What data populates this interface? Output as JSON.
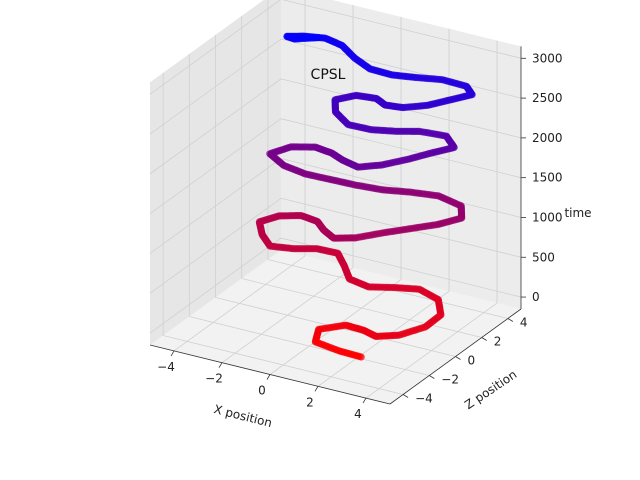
{
  "chart_data": {
    "type": "scatter",
    "projection": "3d",
    "title": "CPSL",
    "xlabel": "X position",
    "ylabel": "Z position",
    "zlabel": "time",
    "xlim": [
      -5,
      5
    ],
    "ylim": [
      -5,
      5
    ],
    "zlim": [
      -150,
      3150
    ],
    "xticks": [
      "−4",
      "−2",
      "0",
      "2",
      "4"
    ],
    "yticks": [
      "−4",
      "−2",
      "0",
      "2",
      "4"
    ],
    "zticks": [
      "0",
      "500",
      "1000",
      "1500",
      "2000",
      "2500",
      "3000"
    ],
    "grid": true,
    "pane_color": "#f2f2f2",
    "color_start": "#ff0000",
    "color_end": "#0000ff",
    "series": [
      {
        "points": [
          [
            2.6,
            -2.8,
            0
          ],
          [
            1.8,
            -3.0,
            40
          ],
          [
            0.8,
            -3.0,
            80
          ],
          [
            0.5,
            -2.2,
            120
          ],
          [
            1.3,
            -1.6,
            160
          ],
          [
            2.2,
            -1.9,
            200
          ],
          [
            3.0,
            -2.4,
            240
          ],
          [
            3.8,
            -2.1,
            280
          ],
          [
            4.4,
            -1.2,
            320
          ],
          [
            4.5,
            -0.2,
            360
          ],
          [
            3.9,
            0.7,
            400
          ],
          [
            3.0,
            0.9,
            440
          ],
          [
            2.3,
            0.3,
            480
          ],
          [
            1.6,
            -0.4,
            520
          ],
          [
            0.8,
            -0.4,
            560
          ],
          [
            0.2,
            0.3,
            600
          ],
          [
            -0.4,
            0.9,
            640
          ],
          [
            -1.1,
            0.6,
            680
          ],
          [
            -1.7,
            -0.1,
            720
          ],
          [
            -2.4,
            -0.6,
            760
          ],
          [
            -3.0,
            -0.1,
            800
          ],
          [
            -3.5,
            0.6,
            840
          ],
          [
            -3.0,
            1.2,
            880
          ],
          [
            -2.2,
            1.4,
            920
          ],
          [
            -1.3,
            1.0,
            960
          ],
          [
            -0.6,
            0.2,
            1000
          ],
          [
            0.2,
            -0.5,
            1040
          ],
          [
            1.0,
            -0.3,
            1080
          ],
          [
            1.8,
            0.4,
            1120
          ],
          [
            2.6,
            1.0,
            1160
          ],
          [
            3.4,
            1.6,
            1200
          ],
          [
            4.0,
            2.3,
            1240
          ],
          [
            3.6,
            3.0,
            1280
          ],
          [
            2.6,
            3.1,
            1320
          ],
          [
            1.7,
            2.6,
            1360
          ],
          [
            0.9,
            2.0,
            1400
          ],
          [
            0.0,
            1.6,
            1440
          ],
          [
            -0.9,
            1.3,
            1480
          ],
          [
            -1.8,
            1.0,
            1520
          ],
          [
            -2.7,
            1.0,
            1560
          ],
          [
            -3.5,
            1.4,
            1600
          ],
          [
            -3.0,
            2.1,
            1640
          ],
          [
            -2.1,
            2.3,
            1680
          ],
          [
            -1.2,
            1.9,
            1720
          ],
          [
            -0.4,
            1.3,
            1760
          ],
          [
            0.5,
            0.8,
            1800
          ],
          [
            1.3,
            1.2,
            1840
          ],
          [
            2.0,
            1.9,
            1880
          ],
          [
            2.6,
            2.6,
            1920
          ],
          [
            3.2,
            3.2,
            1960
          ],
          [
            2.6,
            3.7,
            2000
          ],
          [
            1.7,
            3.3,
            2040
          ],
          [
            1.1,
            2.6,
            2080
          ],
          [
            0.4,
            2.0,
            2120
          ],
          [
            -0.4,
            1.7,
            2160
          ],
          [
            -1.2,
            2.2,
            2200
          ],
          [
            -1.6,
            2.9,
            2240
          ],
          [
            -1.0,
            3.4,
            2280
          ],
          [
            -0.1,
            3.3,
            2320
          ],
          [
            0.6,
            2.7,
            2360
          ],
          [
            1.4,
            2.6,
            2400
          ],
          [
            2.2,
            3.0,
            2440
          ],
          [
            2.8,
            3.6,
            2480
          ],
          [
            3.4,
            4.2,
            2520
          ],
          [
            3.0,
            4.5,
            2560
          ],
          [
            2.1,
            4.3,
            2600
          ],
          [
            1.3,
            3.7,
            2640
          ],
          [
            0.6,
            3.2,
            2680
          ],
          [
            -0.2,
            3.0,
            2720
          ],
          [
            -1.0,
            3.3,
            2760
          ],
          [
            -1.8,
            3.8,
            2800
          ],
          [
            -2.5,
            3.8,
            2840
          ],
          [
            -3.1,
            3.3,
            2880
          ],
          [
            -3.5,
            2.7,
            2920
          ],
          [
            -3.0,
            2.4,
            2960
          ],
          [
            -2.2,
            2.7,
            3000
          ]
        ]
      }
    ]
  }
}
